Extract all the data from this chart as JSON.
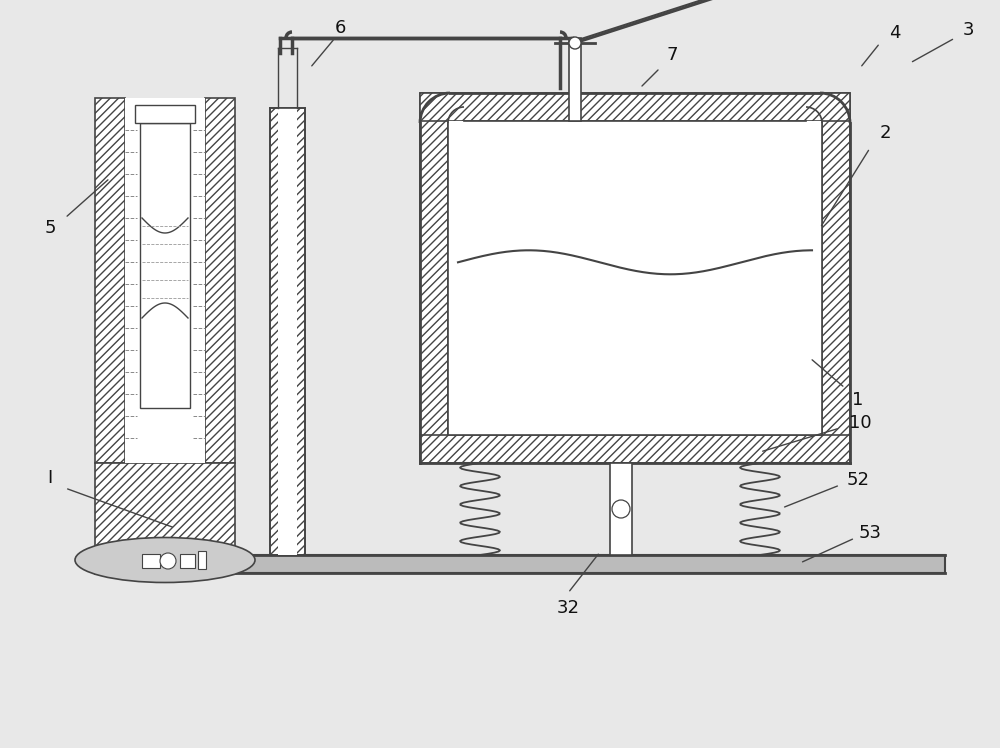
{
  "bg_color": "#e8e8e8",
  "line_color": "#444444",
  "label_color": "#111111",
  "figsize": [
    10.0,
    7.48
  ],
  "dpi": 100
}
